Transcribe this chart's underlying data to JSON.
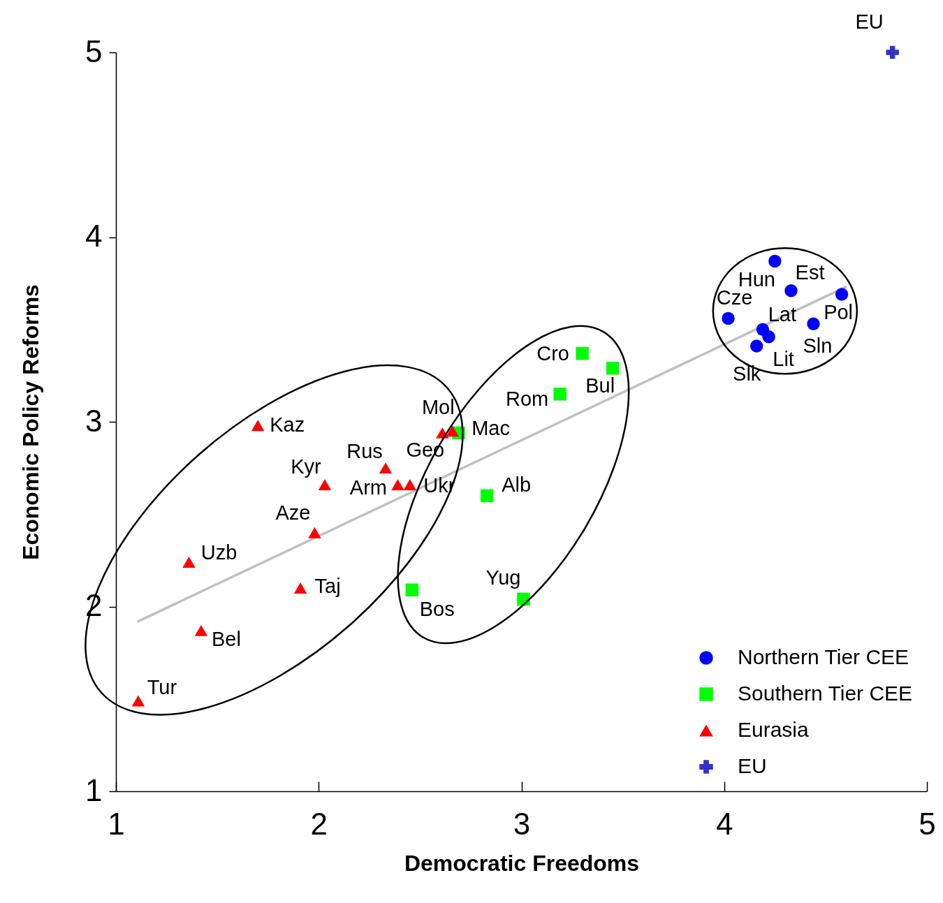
{
  "chart_data": {
    "type": "scatter",
    "xlabel": "Democratic Freedoms",
    "ylabel": "Economic Policy Reforms",
    "xlim": [
      1,
      5
    ],
    "ylim": [
      1,
      5
    ],
    "xticks": [
      1,
      2,
      3,
      4,
      5
    ],
    "yticks": [
      1,
      2,
      3,
      4,
      5
    ],
    "grid": false,
    "legend": "bottom right",
    "series": [
      {
        "name": "Northern Tier CEE",
        "color": "#0000ff",
        "marker": "circle",
        "x": [
          4.25,
          4.33,
          4.02,
          4.58,
          4.19,
          4.22,
          4.16,
          4.44
        ],
        "values": [
          3.87,
          3.71,
          3.56,
          3.69,
          3.5,
          3.46,
          3.41,
          3.53
        ]
      },
      {
        "name": "Southern Tier CEE",
        "color": "#00ff00",
        "marker": "square",
        "x": [
          3.3,
          3.45,
          3.19,
          2.69,
          2.83,
          2.46,
          3.01
        ],
        "values": [
          3.37,
          3.29,
          3.15,
          2.94,
          2.6,
          2.09,
          2.04
        ]
      },
      {
        "name": "Eurasia",
        "color": "#ff0000",
        "marker": "triangle",
        "x": [
          1.7,
          2.03,
          2.33,
          2.39,
          2.45,
          2.61,
          2.66,
          1.98,
          1.36,
          1.91,
          1.42,
          1.11
        ],
        "values": [
          2.98,
          2.66,
          2.75,
          2.66,
          2.66,
          2.94,
          2.95,
          2.4,
          2.24,
          2.1,
          1.87,
          1.49
        ]
      },
      {
        "name": "EU",
        "color": "#3333cc",
        "marker": "cross",
        "x": [
          4.83
        ],
        "values": [
          5.0
        ]
      },
      {
        "type": "line",
        "color": "#c0c0c0",
        "marker": "none",
        "x": [
          1.11,
          4.6
        ],
        "values": [
          1.92,
          3.73
        ]
      }
    ],
    "annotations": [
      {
        "text": "Hun",
        "x": 4.25,
        "y": 3.87
      },
      {
        "text": "Est",
        "x": 4.33,
        "y": 3.71
      },
      {
        "text": "Cze",
        "x": 4.02,
        "y": 3.56
      },
      {
        "text": "Pol",
        "x": 4.58,
        "y": 3.69
      },
      {
        "text": "Lat",
        "x": 4.19,
        "y": 3.5
      },
      {
        "text": "Lit",
        "x": 4.22,
        "y": 3.46
      },
      {
        "text": "Slk",
        "x": 4.16,
        "y": 3.41
      },
      {
        "text": "Sln",
        "x": 4.44,
        "y": 3.53
      },
      {
        "text": "Cro",
        "x": 3.3,
        "y": 3.37
      },
      {
        "text": "Bul",
        "x": 3.45,
        "y": 3.29
      },
      {
        "text": "Rom",
        "x": 3.19,
        "y": 3.15
      },
      {
        "text": "Mac",
        "x": 2.69,
        "y": 2.94
      },
      {
        "text": "Alb",
        "x": 2.83,
        "y": 2.6
      },
      {
        "text": "Bos",
        "x": 2.46,
        "y": 2.09
      },
      {
        "text": "Yug",
        "x": 3.01,
        "y": 2.04
      },
      {
        "text": "Kaz",
        "x": 1.7,
        "y": 2.98
      },
      {
        "text": "Kyr",
        "x": 2.03,
        "y": 2.66
      },
      {
        "text": "Rus",
        "x": 2.33,
        "y": 2.75
      },
      {
        "text": "Arm",
        "x": 2.39,
        "y": 2.66
      },
      {
        "text": "Ukr",
        "x": 2.45,
        "y": 2.66
      },
      {
        "text": "Mol",
        "x": 2.61,
        "y": 2.94
      },
      {
        "text": "Geo",
        "x": 2.66,
        "y": 2.95
      },
      {
        "text": "Aze",
        "x": 1.98,
        "y": 2.4
      },
      {
        "text": "Uzb",
        "x": 1.36,
        "y": 2.24
      },
      {
        "text": "Taj",
        "x": 1.91,
        "y": 2.1
      },
      {
        "text": "Bel",
        "x": 1.42,
        "y": 1.87
      },
      {
        "text": "Tur",
        "x": 1.11,
        "y": 1.49
      },
      {
        "text": "EU",
        "x": 4.83,
        "y": 5.0
      }
    ]
  }
}
